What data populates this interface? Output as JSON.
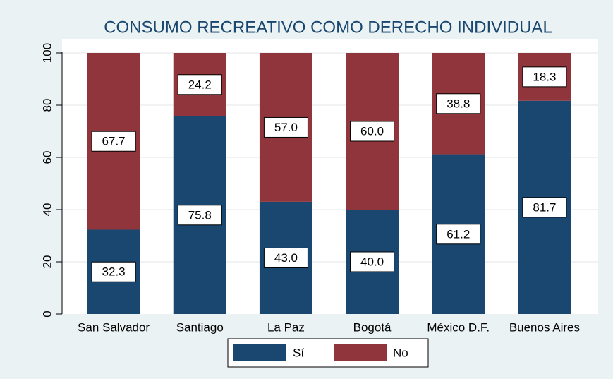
{
  "chart_data": {
    "type": "bar",
    "stacked": true,
    "title": "CONSUMO RECREATIVO COMO DERECHO INDIVIDUAL",
    "categories": [
      "San Salvador",
      "Santiago",
      "La Paz",
      "Bogotá",
      "México D.F.",
      "Buenos Aires"
    ],
    "series": [
      {
        "name": "Sí",
        "color": "#1a476f",
        "values": [
          32.3,
          75.8,
          43.0,
          40.0,
          61.2,
          81.7
        ],
        "value_labels": [
          "32.3",
          "75.8",
          "43.0",
          "40.0",
          "61.2",
          "81.7"
        ]
      },
      {
        "name": "No",
        "color": "#90353b",
        "values": [
          67.7,
          24.2,
          57.0,
          60.0,
          38.8,
          18.3
        ],
        "value_labels": [
          "67.7",
          "24.2",
          "57.0",
          "60.0",
          "38.8",
          "18.3"
        ]
      }
    ],
    "ylim": [
      0,
      100
    ],
    "yticks": [
      0,
      20,
      40,
      60,
      80,
      100
    ],
    "grid": true,
    "legend": "bottom"
  }
}
